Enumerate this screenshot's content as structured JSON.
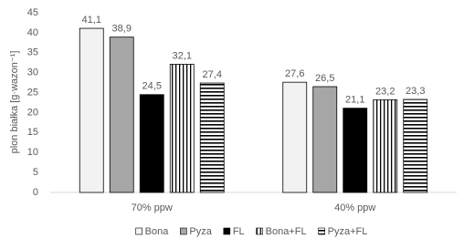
{
  "chart_data": {
    "type": "bar",
    "y_label": "plon białka [g·wazon⁻¹]",
    "categories": [
      "70% ppw",
      "40% ppw"
    ],
    "series": [
      {
        "name": "Bona",
        "color": "#f2f2f2",
        "pattern": "solid",
        "values": [
          41.1,
          27.6
        ],
        "value_labels": [
          "41,1",
          "27,6"
        ]
      },
      {
        "name": "Pyza",
        "color": "#a6a6a6",
        "pattern": "solid",
        "values": [
          38.9,
          26.5
        ],
        "value_labels": [
          "38,9",
          "26,5"
        ]
      },
      {
        "name": "FL",
        "color": "#000000",
        "pattern": "solid",
        "values": [
          24.5,
          21.1
        ],
        "value_labels": [
          "24,5",
          "21,1"
        ]
      },
      {
        "name": "Bona+FL",
        "color": "#000000",
        "pattern": "vertical",
        "values": [
          32.1,
          23.2
        ],
        "value_labels": [
          "32,1",
          "23,2"
        ]
      },
      {
        "name": "Pyza+FL",
        "color": "#000000",
        "pattern": "horizontal",
        "values": [
          27.4,
          23.3
        ],
        "value_labels": [
          "27,4",
          "23,3"
        ]
      }
    ],
    "ylim": [
      0,
      45
    ],
    "yticks": [
      0,
      5,
      10,
      15,
      20,
      25,
      30,
      35,
      40,
      45
    ],
    "grid": false,
    "legend": "bottom"
  }
}
